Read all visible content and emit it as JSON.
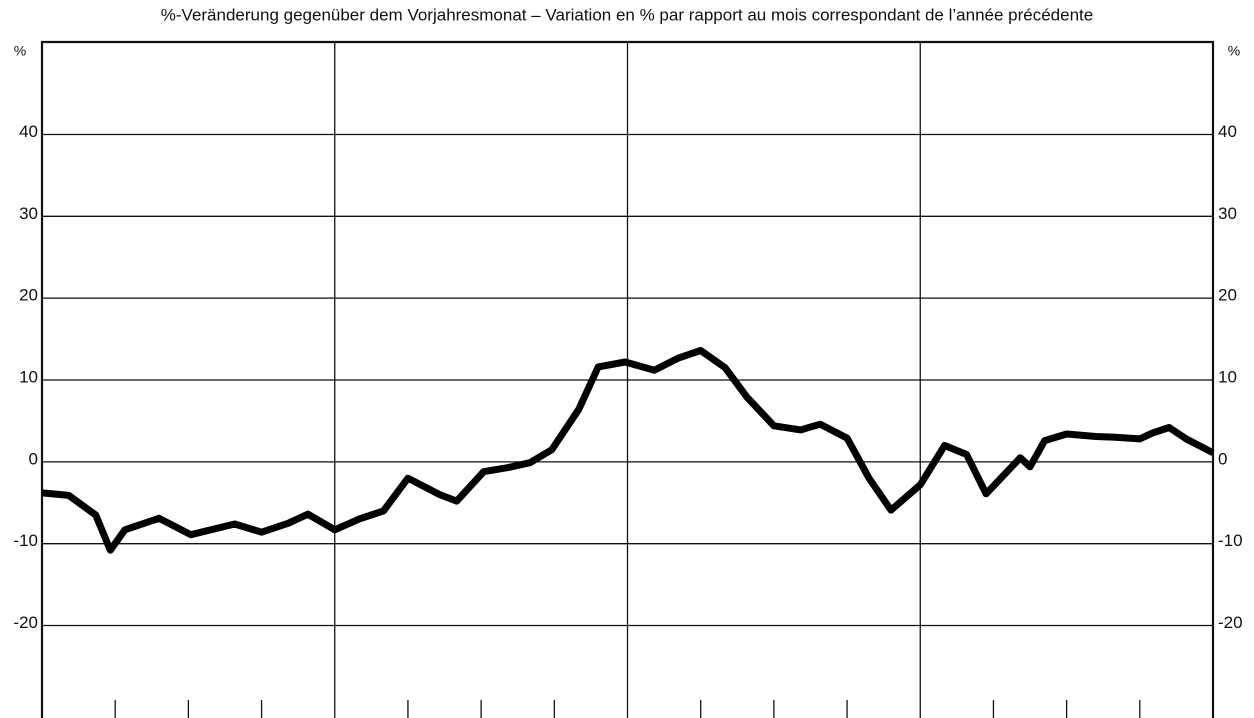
{
  "chart_data": {
    "type": "line",
    "title": "%-Veränderung gegenüber dem Vorjahresmonat – Variation en % par rapport au mois correspondant de l’année précédente",
    "y_label": "%",
    "x": [
      0,
      1.1,
      2.2,
      2.8,
      3.4,
      4.8,
      6.1,
      7.9,
      9.0,
      10.1,
      10.9,
      12.0,
      13.0,
      14.0,
      15.0,
      16.3,
      17.0,
      18.1,
      19.1,
      20.0,
      20.9,
      22.0,
      22.8,
      23.9,
      25.1,
      26.1,
      27.0,
      28.0,
      28.9,
      30.0,
      31.1,
      31.9,
      33.0,
      33.9,
      34.8,
      36.0,
      37.0,
      37.9,
      38.7,
      40.1,
      40.5,
      41.1,
      42.0,
      43.2,
      44.0,
      45.0,
      45.5,
      46.2,
      46.9,
      48.0
    ],
    "series": [
      {
        "color": "#000000",
        "values": [
          -3.8,
          -4.1,
          -6.5,
          -10.8,
          -8.3,
          -6.9,
          -8.9,
          -7.6,
          -8.6,
          -7.5,
          -6.4,
          -8.3,
          -7.0,
          -6.0,
          -2.0,
          -4.0,
          -4.8,
          -1.2,
          -0.7,
          -0.1,
          1.5,
          6.4,
          11.6,
          12.2,
          11.2,
          12.7,
          13.6,
          11.5,
          7.9,
          4.4,
          3.9,
          4.6,
          2.9,
          -2.0,
          -5.9,
          -2.8,
          2.0,
          0.9,
          -3.9,
          0.5,
          -0.6,
          2.6,
          3.4,
          3.1,
          3.0,
          2.8,
          3.5,
          4.2,
          2.8,
          1.1
        ]
      }
    ],
    "xlim": [
      0,
      48
    ],
    "xticks": [
      0,
      3,
      6,
      9,
      12,
      15,
      18,
      21,
      24,
      27,
      30,
      33,
      36,
      39,
      42,
      45,
      48
    ],
    "ylim": [
      -31.3,
      51.3
    ],
    "yticks": [
      -20,
      -10,
      0,
      10,
      20,
      30,
      40
    ],
    "grid": true,
    "right_axis": true
  }
}
